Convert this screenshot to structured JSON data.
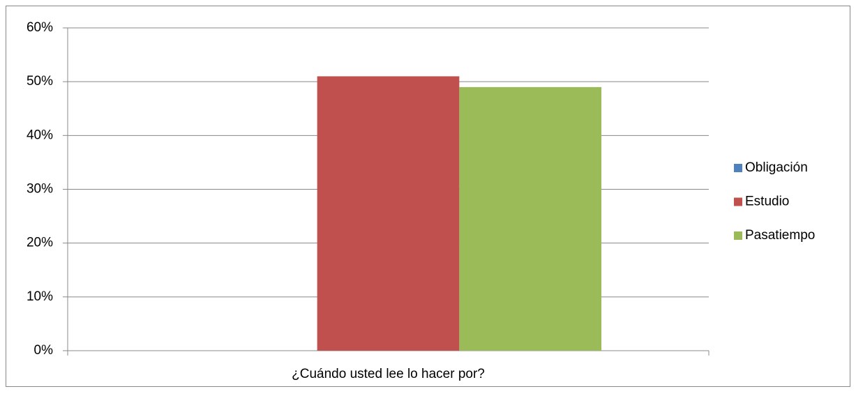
{
  "chart_data": {
    "type": "bar",
    "categories": [
      "¿Cuándo usted lee lo hacer por?"
    ],
    "series": [
      {
        "name": "Obligación",
        "color": "#4f81bd",
        "values": [
          0
        ]
      },
      {
        "name": "Estudio",
        "color": "#c0504d",
        "values": [
          51
        ]
      },
      {
        "name": "Pasatiempo",
        "color": "#9bbb59",
        "values": [
          49
        ]
      }
    ],
    "ylim": [
      0,
      60
    ],
    "yticks": [
      {
        "value": 0,
        "label": "0%"
      },
      {
        "value": 10,
        "label": "10%"
      },
      {
        "value": 20,
        "label": "20%"
      },
      {
        "value": 30,
        "label": "30%"
      },
      {
        "value": 40,
        "label": "40%"
      },
      {
        "value": 50,
        "label": "50%"
      },
      {
        "value": 60,
        "label": "60%"
      }
    ],
    "grid": true,
    "legend": "right"
  }
}
